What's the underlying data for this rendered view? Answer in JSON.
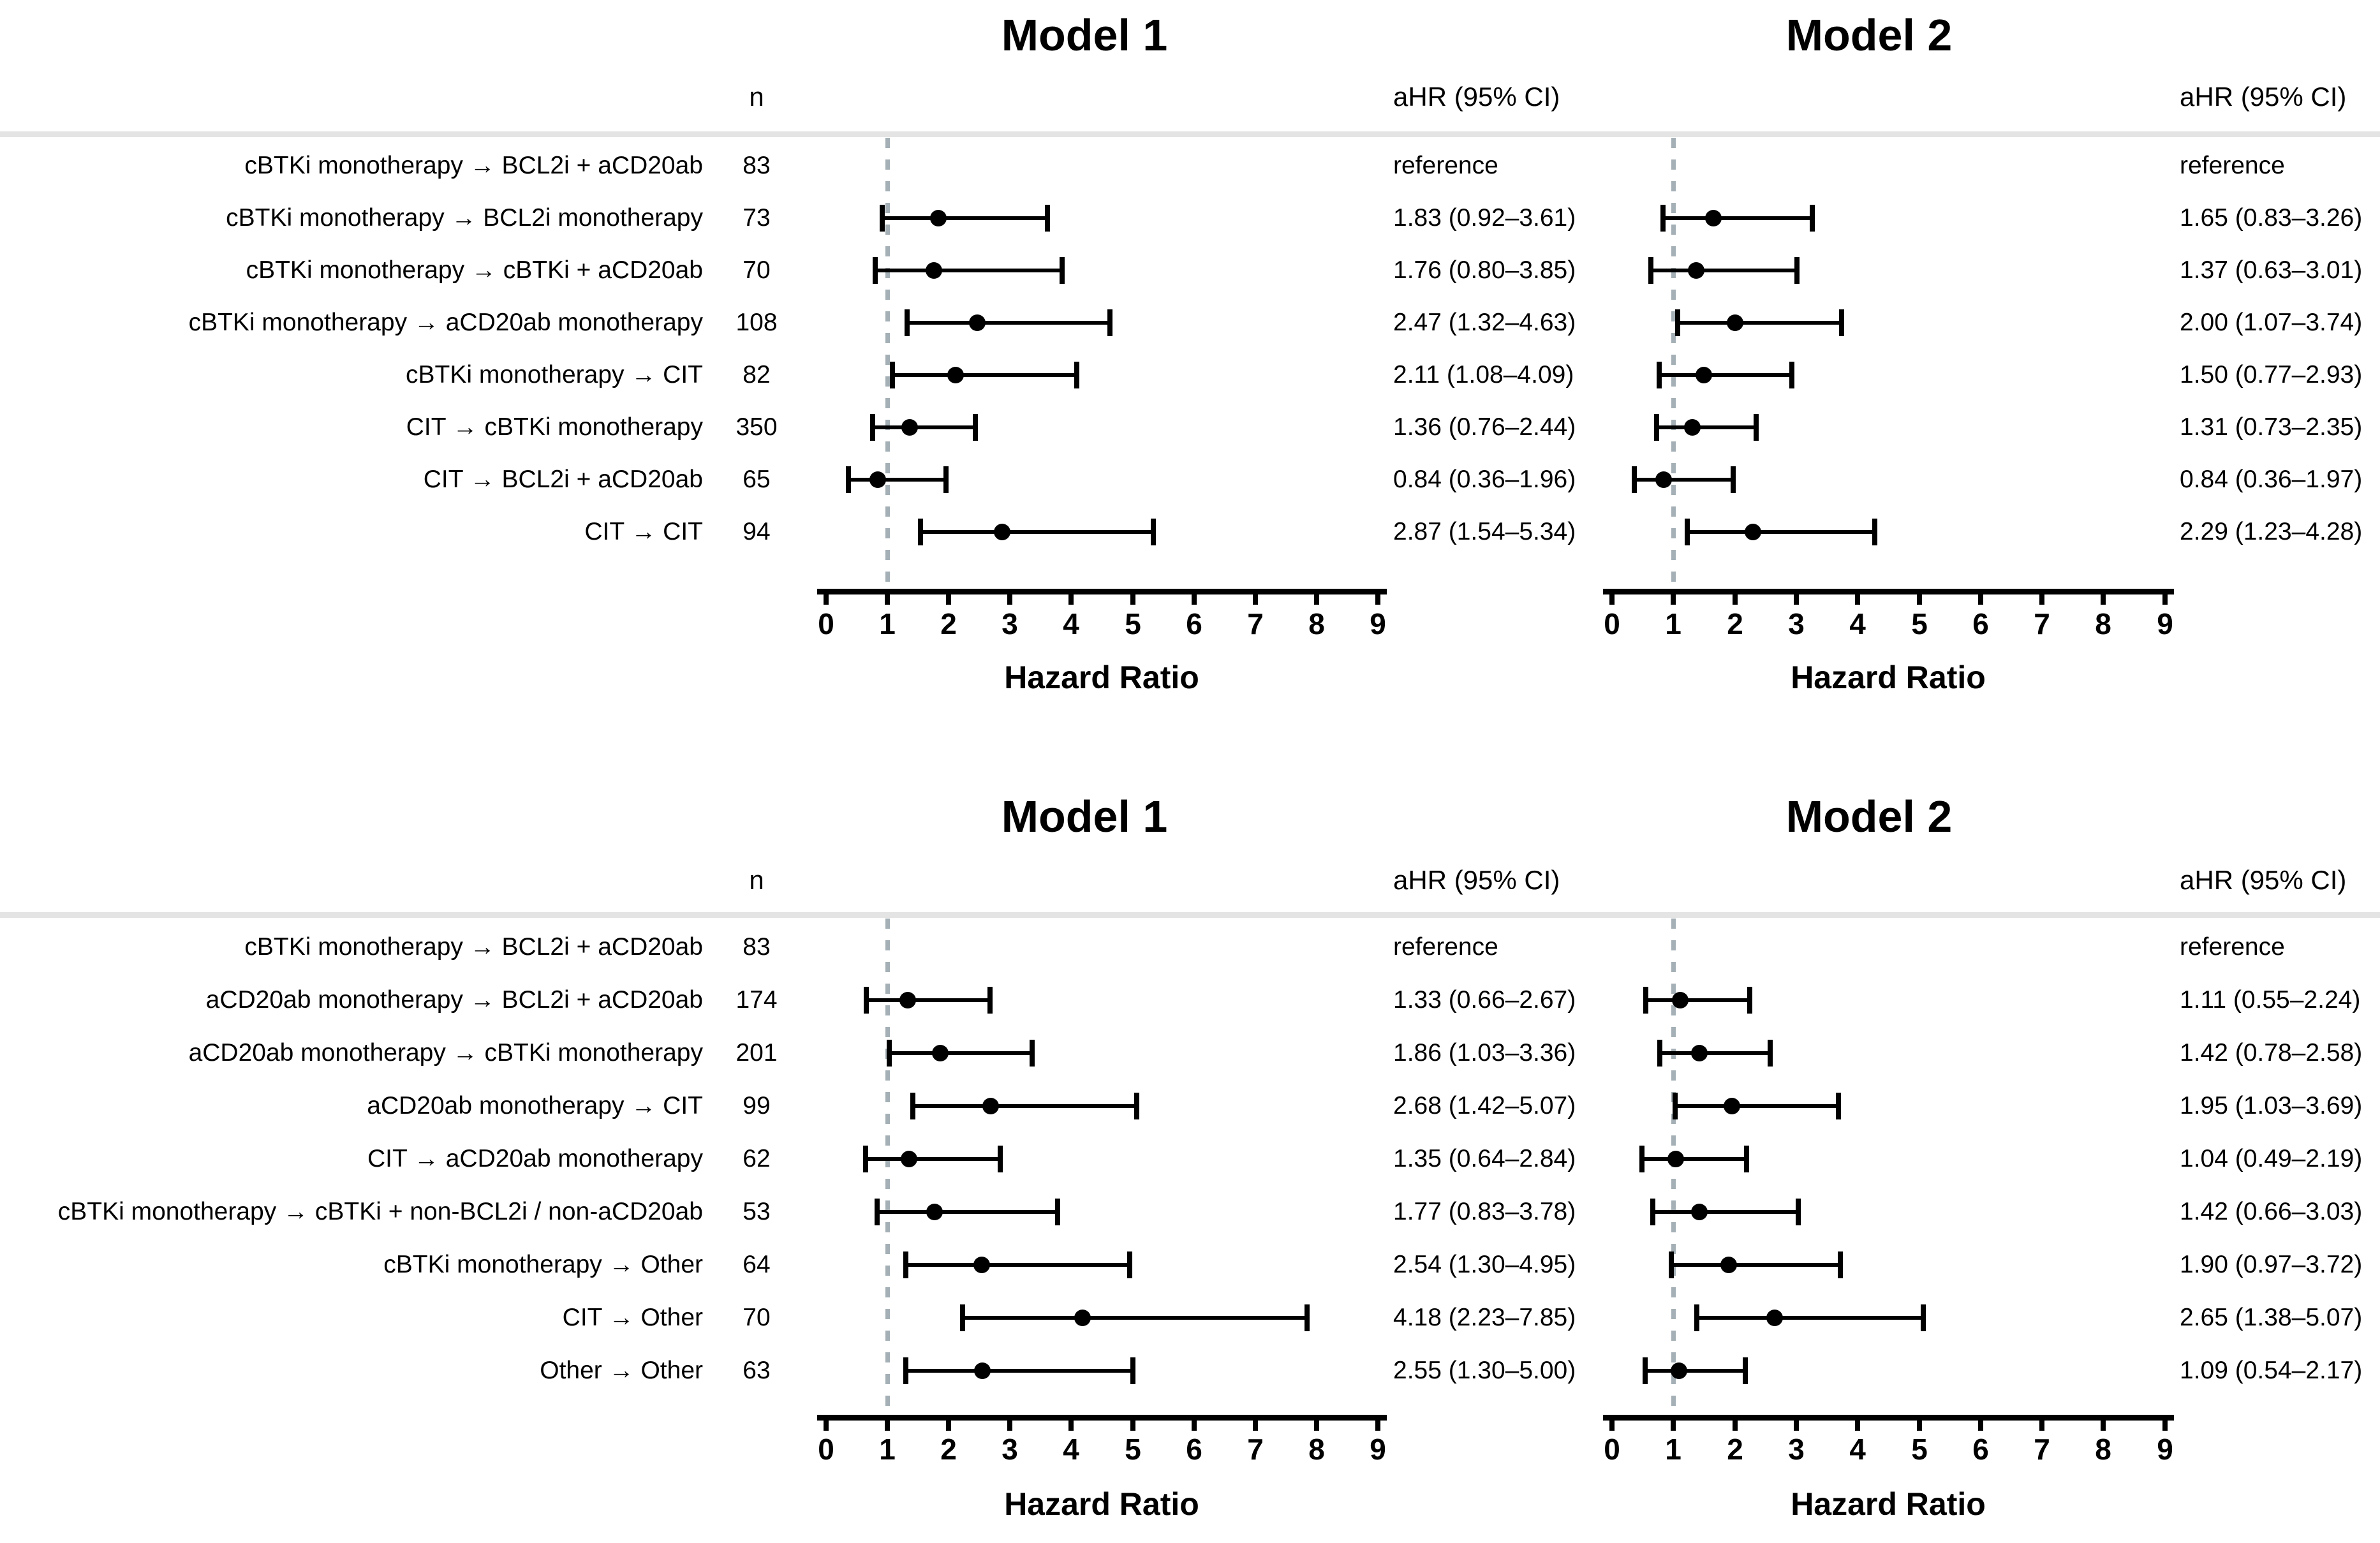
{
  "colors": {
    "ink": "#000000",
    "separator": "#e4e4e4",
    "ref_line": "#a4b0b6"
  },
  "chart_data": [
    {
      "type": "forest",
      "title_columns": [
        "Model 1",
        "Model 2"
      ],
      "col_headers": {
        "n": "n",
        "ahr": "aHR (95% CI)"
      },
      "xlabel": "Hazard Ratio",
      "x_ticks": [
        0,
        1,
        2,
        3,
        4,
        5,
        6,
        7,
        8,
        9
      ],
      "xlim": [
        0,
        9
      ],
      "ref_line": 1,
      "rows": [
        {
          "label": "cBTKi monotherapy → BCL2i + aCD20ab",
          "n": "83",
          "model1": {
            "ahr_text": "reference",
            "est": null,
            "lo": null,
            "hi": null
          },
          "model2": {
            "ahr_text": "reference",
            "est": null,
            "lo": null,
            "hi": null
          }
        },
        {
          "label": "cBTKi monotherapy → BCL2i monotherapy",
          "n": "73",
          "model1": {
            "ahr_text": "1.83 (0.92–3.61)",
            "est": 1.83,
            "lo": 0.92,
            "hi": 3.61
          },
          "model2": {
            "ahr_text": "1.65 (0.83–3.26)",
            "est": 1.65,
            "lo": 0.83,
            "hi": 3.26
          }
        },
        {
          "label": "cBTKi monotherapy → cBTKi + aCD20ab",
          "n": "70",
          "model1": {
            "ahr_text": "1.76 (0.80–3.85)",
            "est": 1.76,
            "lo": 0.8,
            "hi": 3.85
          },
          "model2": {
            "ahr_text": "1.37 (0.63–3.01)",
            "est": 1.37,
            "lo": 0.63,
            "hi": 3.01
          }
        },
        {
          "label": "cBTKi monotherapy → aCD20ab monotherapy",
          "n": "108",
          "model1": {
            "ahr_text": "2.47 (1.32–4.63)",
            "est": 2.47,
            "lo": 1.32,
            "hi": 4.63
          },
          "model2": {
            "ahr_text": "2.00 (1.07–3.74)",
            "est": 2.0,
            "lo": 1.07,
            "hi": 3.74
          }
        },
        {
          "label": "cBTKi monotherapy → CIT",
          "n": "82",
          "model1": {
            "ahr_text": "2.11 (1.08–4.09)",
            "est": 2.11,
            "lo": 1.08,
            "hi": 4.09
          },
          "model2": {
            "ahr_text": "1.50 (0.77–2.93)",
            "est": 1.5,
            "lo": 0.77,
            "hi": 2.93
          }
        },
        {
          "label": "CIT → cBTKi monotherapy",
          "n": "350",
          "model1": {
            "ahr_text": "1.36 (0.76–2.44)",
            "est": 1.36,
            "lo": 0.76,
            "hi": 2.44
          },
          "model2": {
            "ahr_text": "1.31 (0.73–2.35)",
            "est": 1.31,
            "lo": 0.73,
            "hi": 2.35
          }
        },
        {
          "label": "CIT → BCL2i + aCD20ab",
          "n": "65",
          "model1": {
            "ahr_text": "0.84 (0.36–1.96)",
            "est": 0.84,
            "lo": 0.36,
            "hi": 1.96
          },
          "model2": {
            "ahr_text": "0.84 (0.36–1.97)",
            "est": 0.84,
            "lo": 0.36,
            "hi": 1.97
          }
        },
        {
          "label": "CIT → CIT",
          "n": "94",
          "model1": {
            "ahr_text": "2.87 (1.54–5.34)",
            "est": 2.87,
            "lo": 1.54,
            "hi": 5.34
          },
          "model2": {
            "ahr_text": "2.29 (1.23–4.28)",
            "est": 2.29,
            "lo": 1.23,
            "hi": 4.28
          }
        }
      ]
    },
    {
      "type": "forest",
      "title_columns": [
        "Model 1",
        "Model 2"
      ],
      "col_headers": {
        "n": "n",
        "ahr": "aHR (95% CI)"
      },
      "xlabel": "Hazard Ratio",
      "x_ticks": [
        0,
        1,
        2,
        3,
        4,
        5,
        6,
        7,
        8,
        9
      ],
      "xlim": [
        0,
        9
      ],
      "ref_line": 1,
      "rows": [
        {
          "label": "cBTKi monotherapy → BCL2i + aCD20ab",
          "n": "83",
          "model1": {
            "ahr_text": "reference",
            "est": null,
            "lo": null,
            "hi": null
          },
          "model2": {
            "ahr_text": "reference",
            "est": null,
            "lo": null,
            "hi": null
          }
        },
        {
          "label": "aCD20ab monotherapy → BCL2i + aCD20ab",
          "n": "174",
          "model1": {
            "ahr_text": "1.33 (0.66–2.67)",
            "est": 1.33,
            "lo": 0.66,
            "hi": 2.67
          },
          "model2": {
            "ahr_text": "1.11 (0.55–2.24)",
            "est": 1.11,
            "lo": 0.55,
            "hi": 2.24
          }
        },
        {
          "label": "aCD20ab monotherapy → cBTKi monotherapy",
          "n": "201",
          "model1": {
            "ahr_text": "1.86 (1.03–3.36)",
            "est": 1.86,
            "lo": 1.03,
            "hi": 3.36
          },
          "model2": {
            "ahr_text": "1.42 (0.78–2.58)",
            "est": 1.42,
            "lo": 0.78,
            "hi": 2.58
          }
        },
        {
          "label": "aCD20ab monotherapy → CIT",
          "n": "99",
          "model1": {
            "ahr_text": "2.68 (1.42–5.07)",
            "est": 2.68,
            "lo": 1.42,
            "hi": 5.07
          },
          "model2": {
            "ahr_text": "1.95 (1.03–3.69)",
            "est": 1.95,
            "lo": 1.03,
            "hi": 3.69
          }
        },
        {
          "label": "CIT → aCD20ab monotherapy",
          "n": "62",
          "model1": {
            "ahr_text": "1.35 (0.64–2.84)",
            "est": 1.35,
            "lo": 0.64,
            "hi": 2.84
          },
          "model2": {
            "ahr_text": "1.04 (0.49–2.19)",
            "est": 1.04,
            "lo": 0.49,
            "hi": 2.19
          }
        },
        {
          "label": "cBTKi monotherapy → cBTKi + non-BCL2i / non-aCD20ab",
          "n": "53",
          "model1": {
            "ahr_text": "1.77 (0.83–3.78)",
            "est": 1.77,
            "lo": 0.83,
            "hi": 3.78
          },
          "model2": {
            "ahr_text": "1.42 (0.66–3.03)",
            "est": 1.42,
            "lo": 0.66,
            "hi": 3.03
          }
        },
        {
          "label": "cBTKi monotherapy → Other",
          "n": "64",
          "model1": {
            "ahr_text": "2.54 (1.30–4.95)",
            "est": 2.54,
            "lo": 1.3,
            "hi": 4.95
          },
          "model2": {
            "ahr_text": "1.90 (0.97–3.72)",
            "est": 1.9,
            "lo": 0.97,
            "hi": 3.72
          }
        },
        {
          "label": "CIT → Other",
          "n": "70",
          "model1": {
            "ahr_text": "4.18 (2.23–7.85)",
            "est": 4.18,
            "lo": 2.23,
            "hi": 7.85
          },
          "model2": {
            "ahr_text": "2.65 (1.38–5.07)",
            "est": 2.65,
            "lo": 1.38,
            "hi": 5.07
          }
        },
        {
          "label": "Other → Other",
          "n": "63",
          "model1": {
            "ahr_text": "2.55 (1.30–5.00)",
            "est": 2.55,
            "lo": 1.3,
            "hi": 5.0
          },
          "model2": {
            "ahr_text": "1.09 (0.54–2.17)",
            "est": 1.09,
            "lo": 0.54,
            "hi": 2.17
          }
        }
      ]
    }
  ]
}
